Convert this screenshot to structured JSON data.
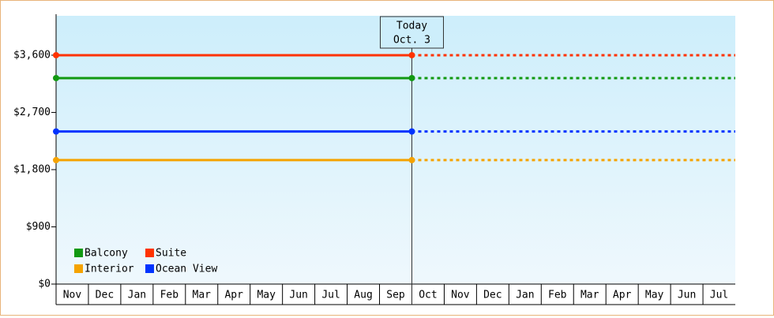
{
  "chart_data": {
    "type": "line",
    "annotation": {
      "title": "Today",
      "date": "Oct. 3"
    },
    "categories": [
      "Nov",
      "Dec",
      "Jan",
      "Feb",
      "Mar",
      "Apr",
      "May",
      "Jun",
      "Jul",
      "Aug",
      "Sep",
      "Oct",
      "Nov",
      "Dec",
      "Jan",
      "Feb",
      "Mar",
      "Apr",
      "May",
      "Jun",
      "Jul"
    ],
    "series": [
      {
        "name": "Balcony",
        "color": "#119911",
        "value": 3240
      },
      {
        "name": "Suite",
        "color": "#ff3300",
        "value": 3600
      },
      {
        "name": "Interior",
        "color": "#f5a300",
        "value": 1950
      },
      {
        "name": "Ocean View",
        "color": "#0033ff",
        "value": 2400
      }
    ],
    "ylim": [
      0,
      4220
    ],
    "yticks": [
      {
        "value": 0,
        "label": "$0"
      },
      {
        "value": 900,
        "label": "$900"
      },
      {
        "value": 1800,
        "label": "$1,800"
      },
      {
        "value": 2700,
        "label": "$2,700"
      },
      {
        "value": 3600,
        "label": "$3,600"
      }
    ]
  }
}
